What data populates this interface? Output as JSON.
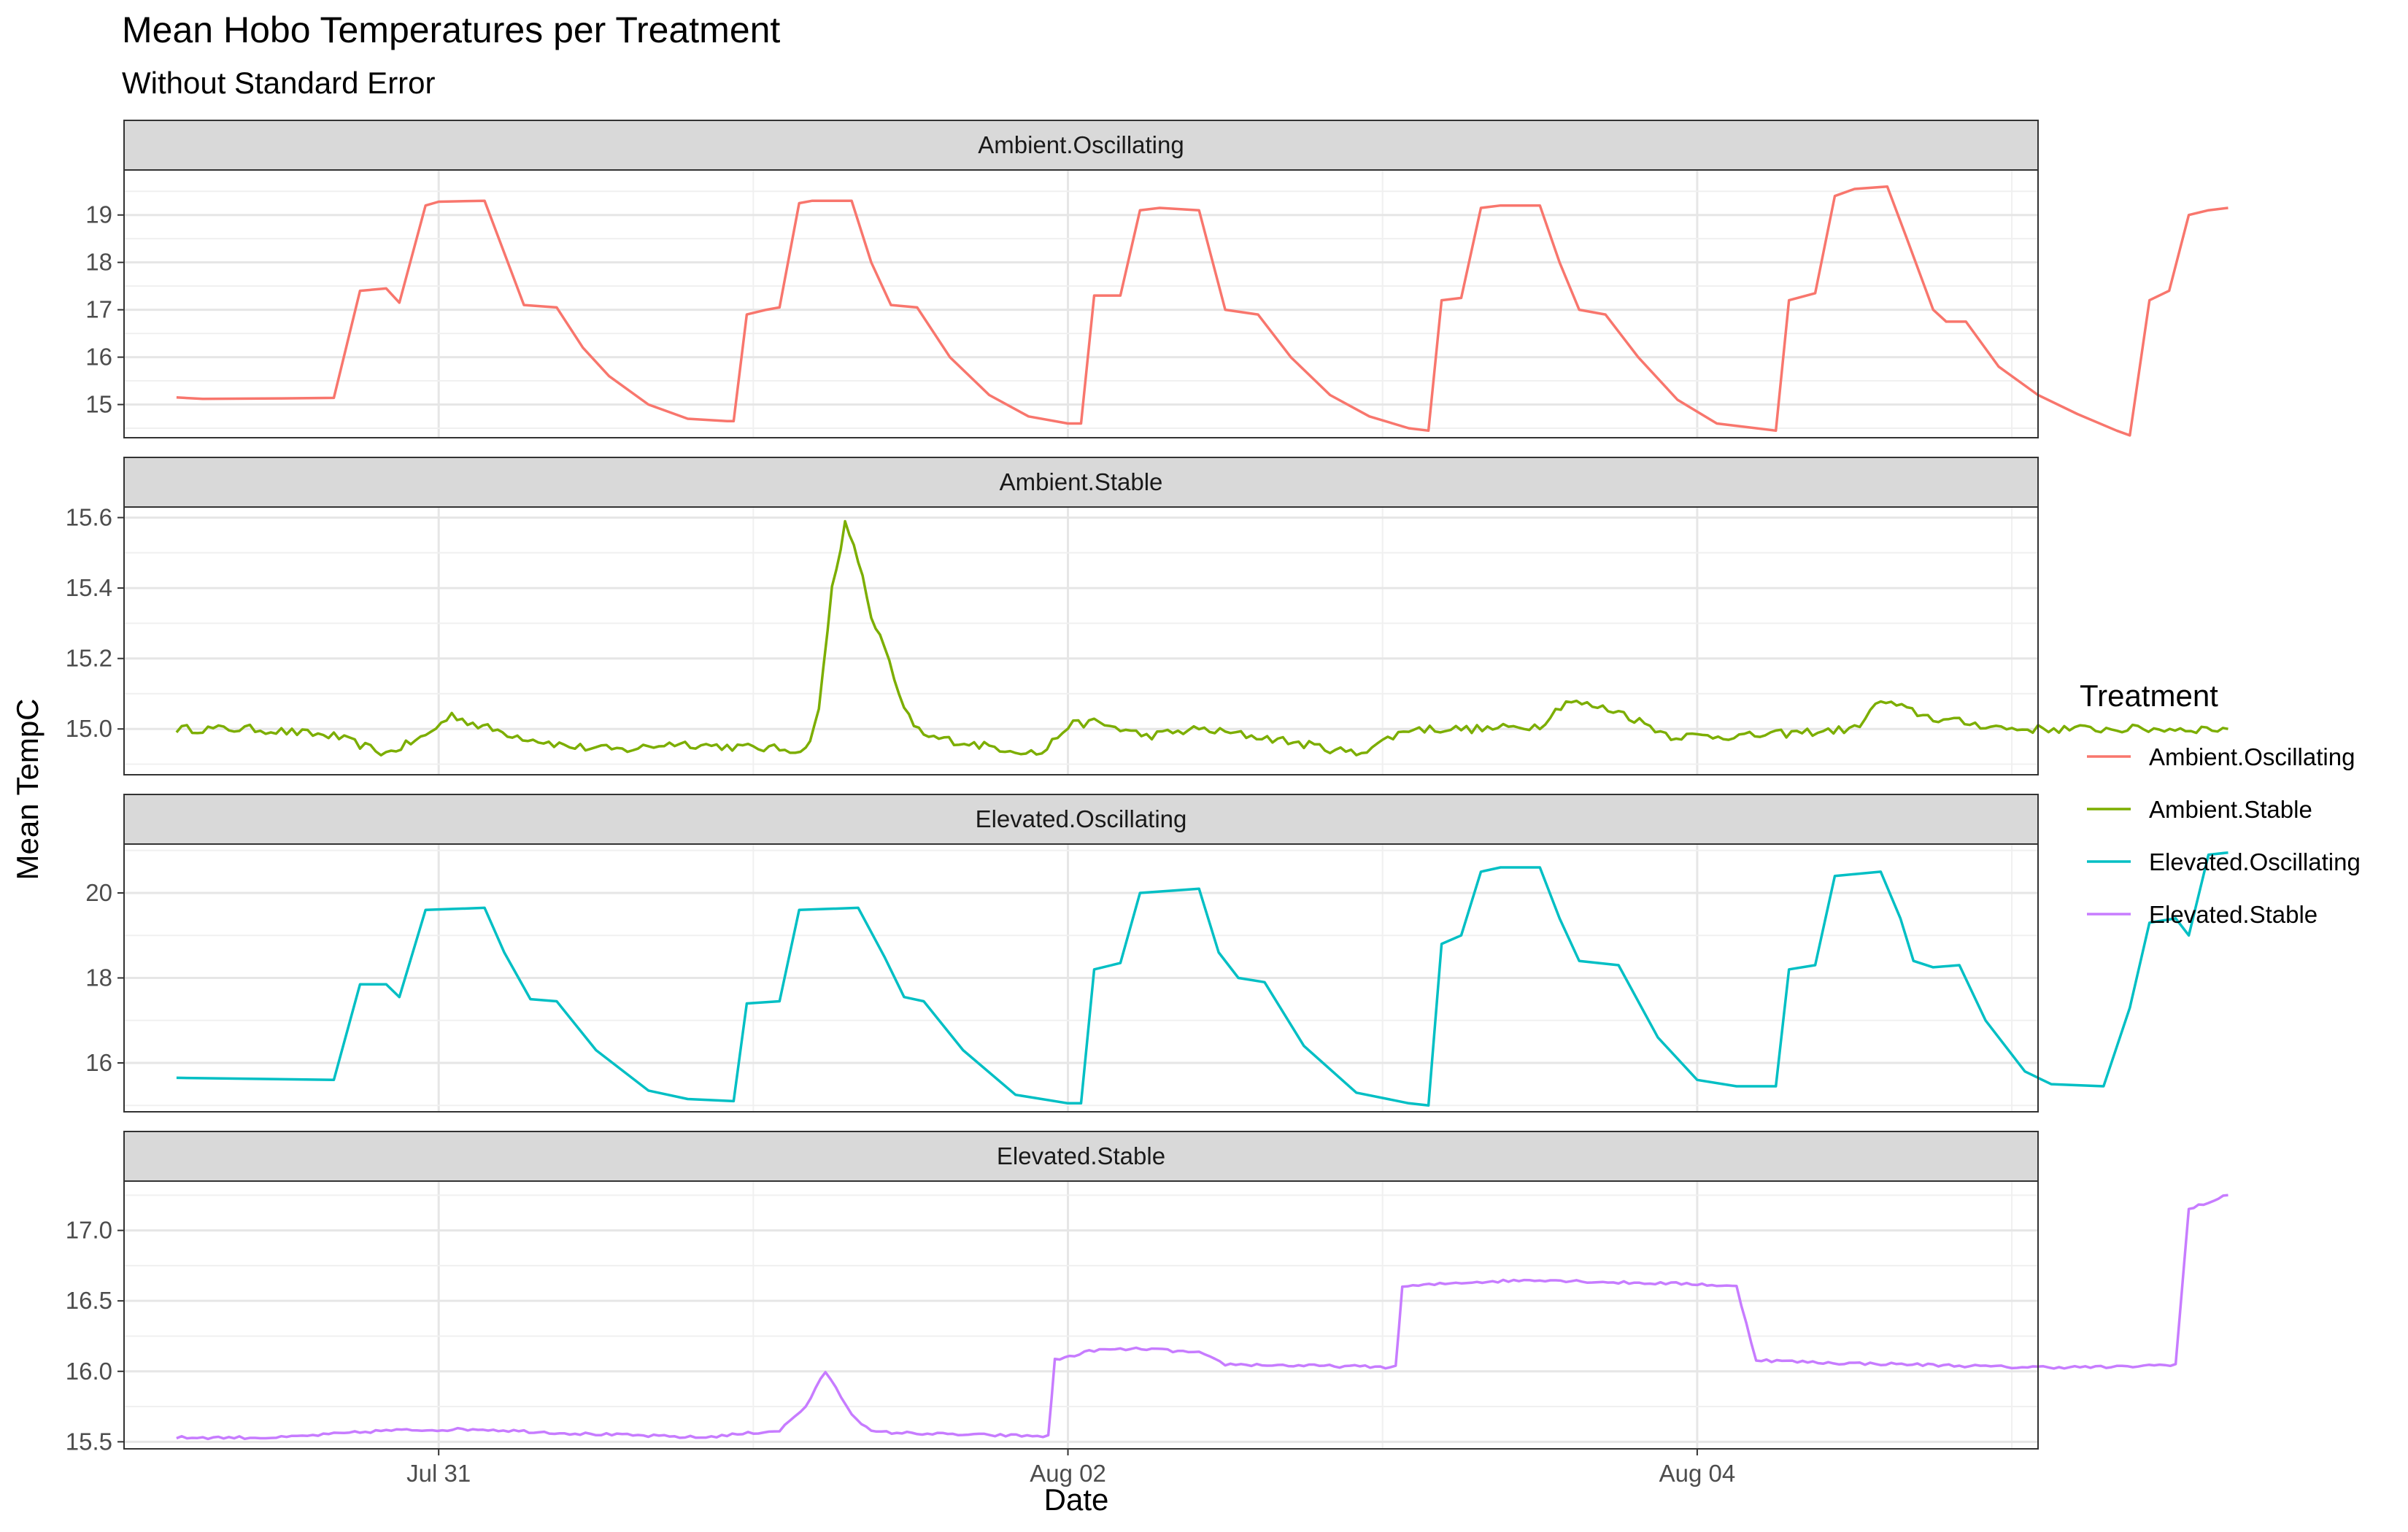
{
  "chart_data": {
    "type": "line",
    "title": "Mean Hobo Temperatures per Treatment",
    "subtitle": "Without Standard Error",
    "xlabel": "Date",
    "ylabel": "Mean TempC",
    "x_ticks": [
      "Jul 31",
      "Aug 02",
      "Aug 04"
    ],
    "x_range": [
      "Jul 30 00:00",
      "Aug 05 02:00"
    ],
    "grid": true,
    "legend": {
      "title": "Treatment",
      "position": "right"
    },
    "facets": [
      {
        "name": "Ambient.Oscillating",
        "color": "#F8766D",
        "ylim": [
          14.3,
          19.95
        ],
        "yticks": [
          "15",
          "16",
          "17",
          "18",
          "19"
        ],
        "points": [
          [
            "Jul 30 04:00",
            15.15
          ],
          [
            "Jul 30 06:00",
            15.12
          ],
          [
            "Jul 30 12:00",
            15.13
          ],
          [
            "Jul 30 16:00",
            15.14
          ],
          [
            "Jul 30 18:00",
            17.4
          ],
          [
            "Jul 30 20:00",
            17.45
          ],
          [
            "Jul 30 21:00",
            17.15
          ],
          [
            "Jul 30 23:00",
            19.2
          ],
          [
            "Jul 31 00:00",
            19.28
          ],
          [
            "Jul 31 03:30",
            19.3
          ],
          [
            "Jul 31 06:30",
            17.1
          ],
          [
            "Jul 31 09:00",
            17.05
          ],
          [
            "Jul 31 11:00",
            16.2
          ],
          [
            "Jul 31 13:00",
            15.6
          ],
          [
            "Jul 31 16:00",
            15.0
          ],
          [
            "Jul 31 19:00",
            14.7
          ],
          [
            "Jul 31 22:00",
            14.65
          ],
          [
            "Jul 31 22:30",
            14.65
          ],
          [
            "Jul 31 23:30",
            16.9
          ],
          [
            "Aug 01 01:00",
            17.0
          ],
          [
            "Aug 01 02:00",
            17.05
          ],
          [
            "Aug 01 03:30",
            19.25
          ],
          [
            "Aug 01 04:30",
            19.3
          ],
          [
            "Aug 01 07:30",
            19.3
          ],
          [
            "Aug 01 09:00",
            18.0
          ],
          [
            "Aug 01 10:30",
            17.1
          ],
          [
            "Aug 01 12:30",
            17.05
          ],
          [
            "Aug 01 15:00",
            16.0
          ],
          [
            "Aug 01 18:00",
            15.2
          ],
          [
            "Aug 01 21:00",
            14.75
          ],
          [
            "Aug 02 00:00",
            14.6
          ],
          [
            "Aug 02 01:00",
            14.6
          ],
          [
            "Aug 02 02:00",
            17.3
          ],
          [
            "Aug 02 04:00",
            17.3
          ],
          [
            "Aug 02 05:30",
            19.1
          ],
          [
            "Aug 02 07:00",
            19.15
          ],
          [
            "Aug 02 10:00",
            19.1
          ],
          [
            "Aug 02 12:00",
            17.0
          ],
          [
            "Aug 02 14:30",
            16.9
          ],
          [
            "Aug 02 17:00",
            16.0
          ],
          [
            "Aug 02 20:00",
            15.2
          ],
          [
            "Aug 02 23:00",
            14.75
          ],
          [
            "Aug 03 02:00",
            14.5
          ],
          [
            "Aug 03 03:30",
            14.45
          ],
          [
            "Aug 03 04:30",
            17.2
          ],
          [
            "Aug 03 06:00",
            17.25
          ],
          [
            "Aug 03 07:30",
            19.15
          ],
          [
            "Aug 03 09:00",
            19.2
          ],
          [
            "Aug 03 12:00",
            19.2
          ],
          [
            "Aug 03 13:30",
            18.0
          ],
          [
            "Aug 03 15:00",
            17.0
          ],
          [
            "Aug 03 17:00",
            16.9
          ],
          [
            "Aug 03 19:30",
            16.0
          ],
          [
            "Aug 03 22:30",
            15.1
          ],
          [
            "Aug 04 01:30",
            14.6
          ],
          [
            "Aug 04 06:00",
            14.45
          ],
          [
            "Aug 04 07:00",
            17.2
          ],
          [
            "Aug 04 09:00",
            17.35
          ],
          [
            "Aug 04 10:30",
            19.4
          ],
          [
            "Aug 04 12:00",
            19.55
          ],
          [
            "Aug 04 14:30",
            19.6
          ],
          [
            "Aug 04 16:00",
            18.5
          ],
          [
            "Aug 04 18:00",
            17.0
          ],
          [
            "Aug 04 19:00",
            16.75
          ],
          [
            "Aug 04 20:30",
            16.75
          ],
          [
            "Aug 04 23:00",
            15.8
          ],
          [
            "Aug 05 02:00",
            15.2
          ],
          [
            "Aug 05 05:00",
            14.8
          ],
          [
            "Aug 05 08:00",
            14.45
          ],
          [
            "Aug 05 09:00",
            14.35
          ],
          [
            "Aug 05 10:30",
            17.2
          ],
          [
            "Aug 05 12:00",
            17.4
          ],
          [
            "Aug 05 13:30",
            19.0
          ],
          [
            "Aug 05 15:00",
            19.1
          ],
          [
            "Aug 05 16:30",
            19.15
          ]
        ]
      },
      {
        "name": "Ambient.Stable",
        "color": "#7CAE00",
        "ylim": [
          14.87,
          15.63
        ],
        "yticks": [
          "15.0",
          "15.2",
          "15.4",
          "15.6"
        ],
        "noise": 0.012,
        "points": [
          [
            "Jul 30 04:00",
            15.0
          ],
          [
            "Jul 30 10:00",
            15.0
          ],
          [
            "Jul 30 16:00",
            14.98
          ],
          [
            "Jul 30 20:00",
            14.93
          ],
          [
            "Jul 30 23:00",
            14.98
          ],
          [
            "Jul 31 01:00",
            15.04
          ],
          [
            "Jul 31 03:00",
            15.01
          ],
          [
            "Jul 31 06:00",
            14.98
          ],
          [
            "Jul 31 10:00",
            14.95
          ],
          [
            "Jul 31 14:00",
            14.94
          ],
          [
            "Jul 31 18:00",
            14.96
          ],
          [
            "Jul 31 22:00",
            14.95
          ],
          [
            "Aug 01 04:00",
            14.94
          ],
          [
            "Aug 01 05:00",
            15.05
          ],
          [
            "Aug 01 06:00",
            15.4
          ],
          [
            "Aug 01 07:00",
            15.58
          ],
          [
            "Aug 01 08:00",
            15.48
          ],
          [
            "Aug 01 09:00",
            15.32
          ],
          [
            "Aug 01 10:00",
            15.23
          ],
          [
            "Aug 01 11:30",
            15.05
          ],
          [
            "Aug 01 13:00",
            14.98
          ],
          [
            "Aug 01 18:00",
            14.95
          ],
          [
            "Aug 01 22:00",
            14.93
          ],
          [
            "Aug 02 00:00",
            15.01
          ],
          [
            "Aug 02 02:00",
            15.02
          ],
          [
            "Aug 02 06:00",
            14.98
          ],
          [
            "Aug 02 10:00",
            15.0
          ],
          [
            "Aug 02 16:00",
            14.97
          ],
          [
            "Aug 02 22:00",
            14.93
          ],
          [
            "Aug 03 02:00",
            15.0
          ],
          [
            "Aug 03 08:00",
            15.0
          ],
          [
            "Aug 03 12:00",
            15.01
          ],
          [
            "Aug 03 14:00",
            15.08
          ],
          [
            "Aug 03 18:00",
            15.05
          ],
          [
            "Aug 03 22:00",
            14.98
          ],
          [
            "Aug 04 04:00",
            14.98
          ],
          [
            "Aug 04 08:00",
            14.99
          ],
          [
            "Aug 04 12:00",
            15.0
          ],
          [
            "Aug 04 14:00",
            15.08
          ],
          [
            "Aug 04 18:00",
            15.03
          ],
          [
            "Aug 05 00:00",
            15.0
          ],
          [
            "Aug 05 08:00",
            15.0
          ],
          [
            "Aug 05 16:30",
            15.0
          ]
        ]
      },
      {
        "name": "Elevated.Oscillating",
        "color": "#00BFC4",
        "ylim": [
          14.85,
          21.15
        ],
        "yticks": [
          "16",
          "18",
          "20"
        ],
        "points": [
          [
            "Jul 30 04:00",
            15.65
          ],
          [
            "Jul 30 16:00",
            15.6
          ],
          [
            "Jul 30 18:00",
            17.85
          ],
          [
            "Jul 30 20:00",
            17.85
          ],
          [
            "Jul 30 21:00",
            17.55
          ],
          [
            "Jul 30 23:00",
            19.6
          ],
          [
            "Jul 31 03:30",
            19.65
          ],
          [
            "Jul 31 05:00",
            18.6
          ],
          [
            "Jul 31 07:00",
            17.5
          ],
          [
            "Jul 31 09:00",
            17.45
          ],
          [
            "Jul 31 12:00",
            16.3
          ],
          [
            "Jul 31 16:00",
            15.35
          ],
          [
            "Jul 31 19:00",
            15.15
          ],
          [
            "Jul 31 22:30",
            15.1
          ],
          [
            "Jul 31 23:30",
            17.4
          ],
          [
            "Aug 01 02:00",
            17.45
          ],
          [
            "Aug 01 03:30",
            19.6
          ],
          [
            "Aug 01 08:00",
            19.65
          ],
          [
            "Aug 01 10:00",
            18.5
          ],
          [
            "Aug 01 11:30",
            17.55
          ],
          [
            "Aug 01 13:00",
            17.45
          ],
          [
            "Aug 01 16:00",
            16.3
          ],
          [
            "Aug 01 20:00",
            15.25
          ],
          [
            "Aug 02 00:00",
            15.05
          ],
          [
            "Aug 02 01:00",
            15.05
          ],
          [
            "Aug 02 02:00",
            18.2
          ],
          [
            "Aug 02 04:00",
            18.35
          ],
          [
            "Aug 02 05:30",
            20.0
          ],
          [
            "Aug 02 10:00",
            20.1
          ],
          [
            "Aug 02 11:30",
            18.6
          ],
          [
            "Aug 02 13:00",
            18.0
          ],
          [
            "Aug 02 15:00",
            17.9
          ],
          [
            "Aug 02 18:00",
            16.4
          ],
          [
            "Aug 02 22:00",
            15.3
          ],
          [
            "Aug 03 02:00",
            15.05
          ],
          [
            "Aug 03 03:30",
            15.0
          ],
          [
            "Aug 03 04:30",
            18.8
          ],
          [
            "Aug 03 06:00",
            19.0
          ],
          [
            "Aug 03 07:30",
            20.5
          ],
          [
            "Aug 03 09:00",
            20.6
          ],
          [
            "Aug 03 12:00",
            20.6
          ],
          [
            "Aug 03 13:30",
            19.4
          ],
          [
            "Aug 03 15:00",
            18.4
          ],
          [
            "Aug 03 18:00",
            18.3
          ],
          [
            "Aug 03 21:00",
            16.6
          ],
          [
            "Aug 04 00:00",
            15.6
          ],
          [
            "Aug 04 03:00",
            15.45
          ],
          [
            "Aug 04 06:00",
            15.45
          ],
          [
            "Aug 04 07:00",
            18.2
          ],
          [
            "Aug 04 09:00",
            18.3
          ],
          [
            "Aug 04 10:30",
            20.4
          ],
          [
            "Aug 04 14:00",
            20.5
          ],
          [
            "Aug 04 15:30",
            19.4
          ],
          [
            "Aug 04 16:30",
            18.4
          ],
          [
            "Aug 04 18:00",
            18.25
          ],
          [
            "Aug 04 20:00",
            18.3
          ],
          [
            "Aug 04 22:00",
            17.0
          ],
          [
            "Aug 05 01:00",
            15.8
          ],
          [
            "Aug 05 03:00",
            15.5
          ],
          [
            "Aug 05 07:00",
            15.45
          ],
          [
            "Aug 05 09:00",
            17.3
          ],
          [
            "Aug 05 10:30",
            19.3
          ],
          [
            "Aug 05 12:30",
            19.4
          ],
          [
            "Aug 05 13:30",
            19.0
          ],
          [
            "Aug 05 15:00",
            20.9
          ],
          [
            "Aug 05 16:30",
            20.95
          ]
        ]
      },
      {
        "name": "Elevated.Stable",
        "color": "#C77CFF",
        "ylim": [
          15.45,
          17.35
        ],
        "yticks": [
          "15.5",
          "16.0",
          "16.5",
          "17.0"
        ],
        "noise": 0.01,
        "points": [
          [
            "Jul 30 04:00",
            15.53
          ],
          [
            "Jul 30 12:00",
            15.53
          ],
          [
            "Jul 30 20:00",
            15.58
          ],
          [
            "Jul 31 03:00",
            15.59
          ],
          [
            "Jul 31 10:00",
            15.56
          ],
          [
            "Jul 31 20:00",
            15.53
          ],
          [
            "Aug 01 02:00",
            15.58
          ],
          [
            "Aug 01 04:00",
            15.75
          ],
          [
            "Aug 01 05:30",
            16.0
          ],
          [
            "Aug 01 07:30",
            15.7
          ],
          [
            "Aug 01 09:00",
            15.57
          ],
          [
            "Aug 01 16:00",
            15.55
          ],
          [
            "Aug 01 22:30",
            15.54
          ],
          [
            "Aug 01 23:00",
            16.08
          ],
          [
            "Aug 02 02:00",
            16.15
          ],
          [
            "Aug 02 06:00",
            16.16
          ],
          [
            "Aug 02 10:00",
            16.13
          ],
          [
            "Aug 02 12:00",
            16.05
          ],
          [
            "Aug 02 18:00",
            16.04
          ],
          [
            "Aug 03 01:00",
            16.03
          ],
          [
            "Aug 03 01:30",
            16.6
          ],
          [
            "Aug 03 06:00",
            16.63
          ],
          [
            "Aug 03 12:00",
            16.65
          ],
          [
            "Aug 03 18:00",
            16.63
          ],
          [
            "Aug 04 00:00",
            16.62
          ],
          [
            "Aug 04 03:00",
            16.6
          ],
          [
            "Aug 04 04:30",
            16.08
          ],
          [
            "Aug 04 10:00",
            16.06
          ],
          [
            "Aug 04 16:00",
            16.05
          ],
          [
            "Aug 05 00:00",
            16.03
          ],
          [
            "Aug 05 08:00",
            16.03
          ],
          [
            "Aug 05 12:30",
            16.05
          ],
          [
            "Aug 05 13:30",
            17.15
          ],
          [
            "Aug 05 16:30",
            17.25
          ]
        ]
      }
    ]
  }
}
